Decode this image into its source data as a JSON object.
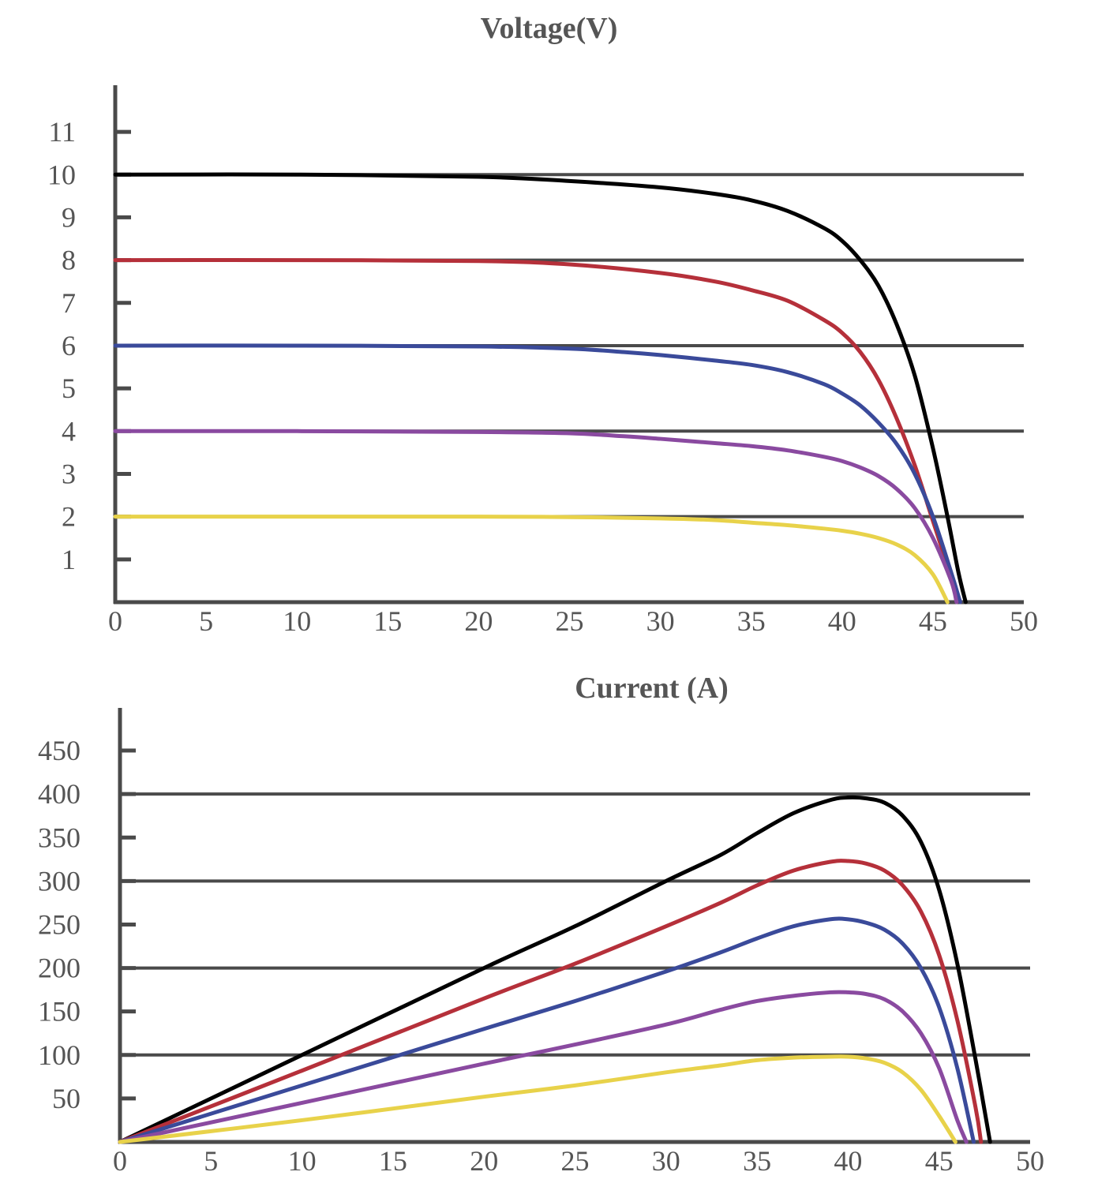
{
  "chart_data": [
    {
      "type": "line",
      "title": "Voltage(V)",
      "xlabel": "",
      "ylabel": "",
      "xlim": [
        0,
        50
      ],
      "ylim": [
        0,
        11.5
      ],
      "xticks": [
        "0",
        "5",
        "10",
        "15",
        "20",
        "25",
        "30",
        "35",
        "40",
        "45",
        "50"
      ],
      "yticks": [
        "1",
        "2",
        "3",
        "4",
        "5",
        "6",
        "7",
        "8",
        "9",
        "10",
        "11"
      ],
      "gridlines_y": [
        2,
        4,
        6,
        8,
        10
      ],
      "legend": "none",
      "series": [
        {
          "color": "#000000",
          "x": [
            0,
            10,
            20,
            25,
            30,
            33,
            35,
            37,
            39,
            40,
            41,
            42,
            43,
            44,
            45,
            45.8,
            46.4,
            46.8
          ],
          "y": [
            10,
            10,
            9.95,
            9.85,
            9.7,
            9.55,
            9.4,
            9.15,
            8.75,
            8.45,
            8,
            7.4,
            6.5,
            5.3,
            3.6,
            2,
            0.7,
            0
          ]
        },
        {
          "color": "#b5303a",
          "x": [
            0,
            10,
            20,
            25,
            30,
            33,
            35,
            37,
            39,
            40,
            41,
            42,
            43,
            44,
            45,
            46,
            46.5
          ],
          "y": [
            8,
            8,
            7.98,
            7.9,
            7.7,
            7.5,
            7.3,
            7.05,
            6.6,
            6.3,
            5.85,
            5.2,
            4.3,
            3.2,
            1.9,
            0.6,
            0
          ]
        },
        {
          "color": "#3a4a9a",
          "x": [
            0,
            10,
            20,
            25,
            28,
            30,
            33,
            35,
            37,
            39,
            40,
            41,
            42,
            43,
            44,
            45,
            46,
            46.5
          ],
          "y": [
            6,
            6,
            5.98,
            5.93,
            5.85,
            5.78,
            5.65,
            5.55,
            5.38,
            5.1,
            4.88,
            4.6,
            4.2,
            3.7,
            3,
            2,
            0.7,
            0
          ]
        },
        {
          "color": "#8a4aa0",
          "x": [
            0,
            10,
            20,
            25,
            28,
            30,
            33,
            35,
            37,
            39,
            40,
            41,
            42,
            43,
            44,
            45,
            46,
            46.3
          ],
          "y": [
            4,
            4,
            3.98,
            3.95,
            3.88,
            3.82,
            3.72,
            3.65,
            3.55,
            3.4,
            3.3,
            3.15,
            2.95,
            2.65,
            2.2,
            1.5,
            0.5,
            0
          ]
        },
        {
          "color": "#e8d24a",
          "x": [
            0,
            10,
            20,
            25,
            30,
            33,
            35,
            37,
            39,
            40,
            41,
            42,
            43,
            44,
            45,
            45.8
          ],
          "y": [
            2,
            2,
            2,
            1.99,
            1.96,
            1.92,
            1.86,
            1.8,
            1.72,
            1.67,
            1.6,
            1.5,
            1.35,
            1.1,
            0.65,
            0
          ]
        }
      ]
    },
    {
      "type": "line",
      "title": "Current   (A)",
      "xlabel": "",
      "ylabel": "",
      "xlim": [
        0,
        50
      ],
      "ylim": [
        0,
        470
      ],
      "xticks": [
        "0",
        "5",
        "10",
        "15",
        "20",
        "25",
        "30",
        "35",
        "40",
        "45",
        "50"
      ],
      "yticks": [
        "50",
        "100",
        "150",
        "200",
        "250",
        "300",
        "350",
        "400",
        "450"
      ],
      "gridlines_y": [
        100,
        200,
        300,
        400
      ],
      "legend": "none",
      "series": [
        {
          "color": "#000000",
          "x": [
            0,
            10,
            20,
            25,
            30,
            33,
            35,
            37,
            39,
            40,
            41,
            42,
            43,
            44,
            45,
            46,
            47,
            47.8
          ],
          "y": [
            0,
            100,
            200,
            248,
            300,
            330,
            355,
            378,
            393,
            396,
            395,
            390,
            375,
            345,
            290,
            205,
            95,
            0
          ]
        },
        {
          "color": "#b5303a",
          "x": [
            0,
            10,
            20,
            25,
            30,
            33,
            35,
            37,
            39,
            40,
            41,
            42,
            43,
            44,
            45,
            46,
            47,
            47.3
          ],
          "y": [
            0,
            82,
            165,
            205,
            248,
            275,
            295,
            312,
            322,
            323,
            320,
            312,
            295,
            265,
            215,
            140,
            40,
            0
          ]
        },
        {
          "color": "#3a4a9a",
          "x": [
            0,
            10,
            20,
            25,
            30,
            33,
            35,
            37,
            39,
            40,
            41,
            42,
            43,
            44,
            45,
            46,
            46.9
          ],
          "y": [
            0,
            65,
            130,
            162,
            196,
            218,
            234,
            248,
            256,
            256,
            252,
            244,
            228,
            200,
            155,
            85,
            0
          ]
        },
        {
          "color": "#8a4aa0",
          "x": [
            0,
            10,
            20,
            25,
            30,
            33,
            35,
            37,
            39,
            40,
            41,
            42,
            43,
            44,
            45,
            46,
            46.5
          ],
          "y": [
            0,
            45,
            90,
            112,
            135,
            152,
            162,
            168,
            172,
            172,
            170,
            164,
            150,
            125,
            85,
            25,
            0
          ]
        },
        {
          "color": "#e8d24a",
          "x": [
            0,
            10,
            20,
            25,
            30,
            33,
            35,
            37,
            39,
            40,
            41,
            42,
            43,
            44,
            45,
            45.9
          ],
          "y": [
            0,
            25,
            52,
            65,
            80,
            88,
            94,
            97,
            98,
            98,
            96,
            91,
            80,
            60,
            30,
            0
          ]
        }
      ]
    }
  ]
}
